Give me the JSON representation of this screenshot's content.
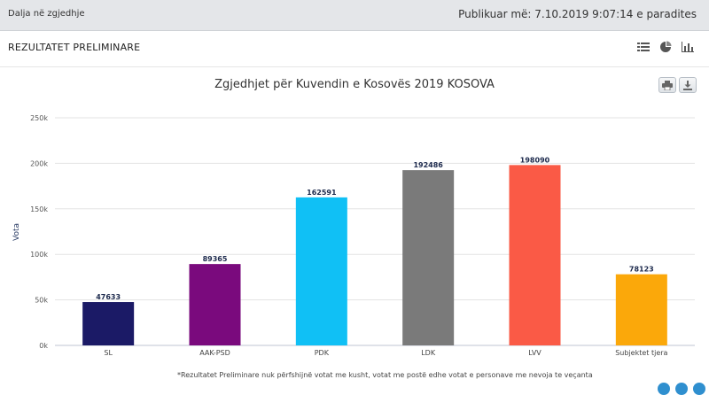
{
  "topbar": {
    "back_link": "Dalja në zgjedhje",
    "published": "Publikuar më: 7.10.2019 9:07:14 e paradites"
  },
  "panel": {
    "title": "REZULTATET PRELIMINARE",
    "icons": [
      "list-view-icon",
      "pie-chart-icon",
      "bar-chart-icon"
    ]
  },
  "chart_buttons": [
    "print-icon",
    "download-icon"
  ],
  "footnote": "*Rezultatet Preliminare nuk përfshijnë votat me kusht, votat me postë edhe votat e personave me nevoja te veçanta",
  "colors": {
    "SL": "#1b1a66",
    "AAK-PSD": "#7a0a7d",
    "PDK": "#10c0f5",
    "LDK": "#7a7a7a",
    "LVV": "#fa5a46",
    "Subjektet tjera": "#fba80a"
  },
  "chart_data": {
    "type": "bar",
    "title": "Zgjedhjet për Kuvendin e Kosovës 2019 KOSOVA",
    "xlabel": "",
    "ylabel": "Vota",
    "categories": [
      "SL",
      "AAK-PSD",
      "PDK",
      "LDK",
      "LVV",
      "Subjektet tjera"
    ],
    "values": [
      47633,
      89365,
      162591,
      192486,
      198090,
      78123
    ],
    "ylim": [
      0,
      250000
    ],
    "yticks": [
      0,
      50000,
      100000,
      150000,
      200000,
      250000
    ],
    "ytick_labels": [
      "0k",
      "50k",
      "100k",
      "150k",
      "200k",
      "250k"
    ],
    "grid": true,
    "legend": "none"
  }
}
